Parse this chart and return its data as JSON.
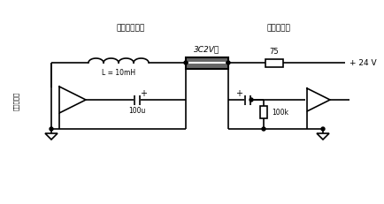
{
  "bg_color": "#ffffff",
  "line_color": "#000000",
  "text_color": "#000000",
  "title_left": "前置放大器側",
  "title_right": "処理装置側",
  "label_inductor": "L = 10mH",
  "label_cap1": "100u",
  "label_cap2": "100k",
  "label_resistor": "75",
  "label_cable": "3C2V等",
  "label_voltage": "+ 24 V",
  "label_amp_left": "前置放大器",
  "figsize": [
    4.35,
    2.32
  ],
  "dpi": 100,
  "lw": 1.2
}
